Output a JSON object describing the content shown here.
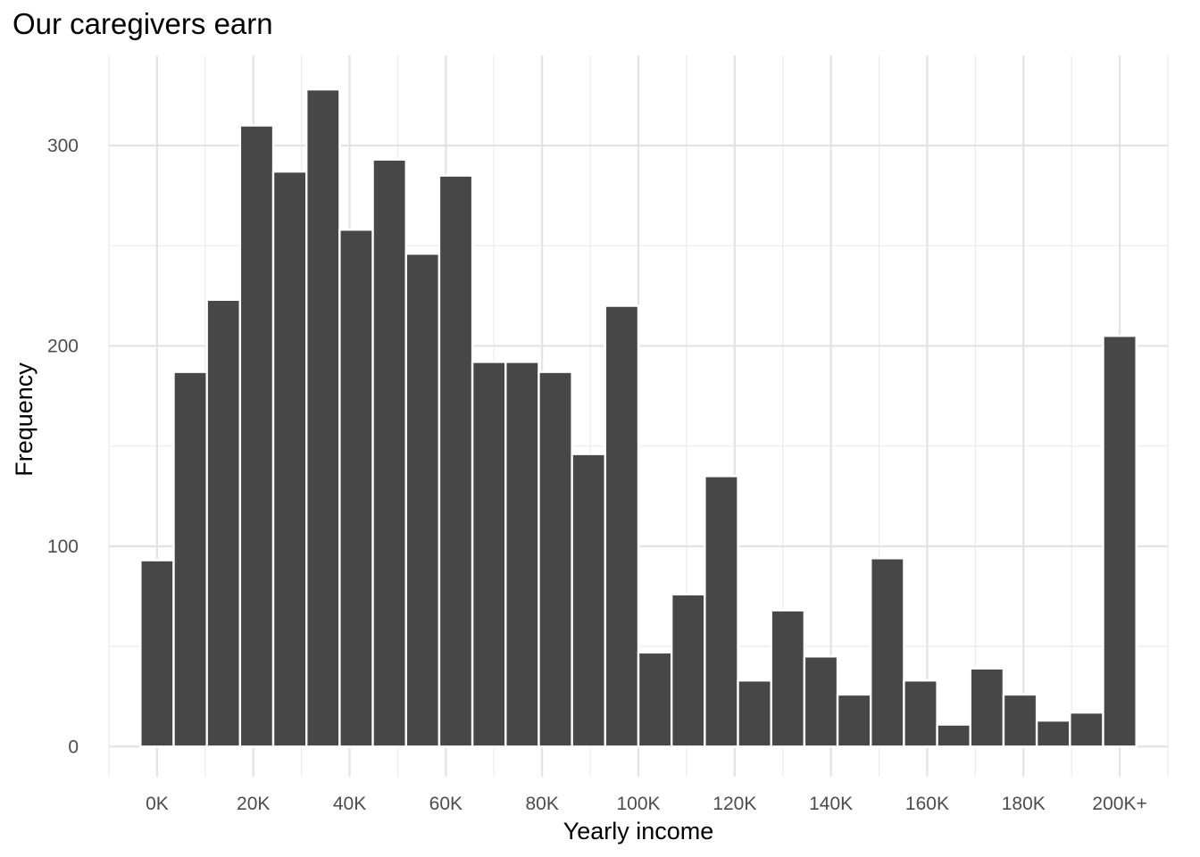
{
  "chart_data": {
    "type": "bar",
    "title": "Our caregivers earn",
    "xlabel": "Yearly income",
    "ylabel": "Frequency",
    "x_ticks": [
      {
        "value": 0,
        "label": "0K"
      },
      {
        "value": 20,
        "label": "20K"
      },
      {
        "value": 40,
        "label": "40K"
      },
      {
        "value": 60,
        "label": "60K"
      },
      {
        "value": 80,
        "label": "80K"
      },
      {
        "value": 100,
        "label": "100K"
      },
      {
        "value": 120,
        "label": "120K"
      },
      {
        "value": 140,
        "label": "140K"
      },
      {
        "value": 160,
        "label": "160K"
      },
      {
        "value": 180,
        "label": "180K"
      },
      {
        "value": 200,
        "label": "200K+"
      }
    ],
    "y_ticks": [
      0,
      100,
      200,
      300
    ],
    "xlim": [
      -10,
      210
    ],
    "ylim": [
      -15,
      345
    ],
    "bin_width": 6.897,
    "bin_centers": [
      0,
      6.897,
      13.793,
      20.69,
      27.586,
      34.483,
      41.379,
      48.276,
      55.172,
      62.069,
      68.966,
      75.862,
      82.759,
      89.655,
      96.552,
      103.448,
      110.345,
      117.241,
      124.138,
      131.034,
      137.931,
      144.828,
      151.724,
      158.621,
      165.517,
      172.414,
      179.31,
      186.207,
      193.103,
      200
    ],
    "values": [
      93,
      187,
      223,
      310,
      287,
      328,
      258,
      293,
      246,
      285,
      192,
      192,
      187,
      146,
      220,
      47,
      76,
      135,
      33,
      68,
      45,
      26,
      94,
      33,
      11,
      39,
      26,
      13,
      17,
      205
    ],
    "bar_color": "#474747",
    "grid": true,
    "legend": "none"
  }
}
